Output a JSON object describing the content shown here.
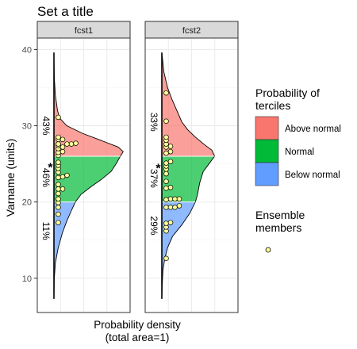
{
  "chart_data": {
    "type": "area",
    "title": "Set a title",
    "ylabel": "Varname (units)",
    "xlabel_line1": "Probability density",
    "xlabel_line2": "(total area=1)",
    "ylim": [
      5.5,
      41.5
    ],
    "yticks": [
      10,
      20,
      30,
      40
    ],
    "grid": true,
    "legend_position": "right",
    "tercile_bounds": [
      20,
      26
    ],
    "legend": {
      "title_line1": "Probability of",
      "title_line2": "terciles",
      "items": [
        {
          "label": "Above normal",
          "color": "#F8766D"
        },
        {
          "label": "Normal",
          "color": "#00BA38"
        },
        {
          "label": "Below normal",
          "color": "#619CFF"
        }
      ],
      "members_title_line1": "Ensemble",
      "members_title_line2": "members"
    },
    "panels": [
      {
        "strip": "fcst1",
        "line_range": [
          7.3,
          39.6
        ],
        "star_value": 24.7,
        "percents": {
          "above": "43%",
          "normal": "46%",
          "below": "11%"
        },
        "percent_y": [
          30.0,
          23.2,
          16.2
        ],
        "density": [
          [
            7.3,
            0.0
          ],
          [
            10,
            0.005
          ],
          [
            12,
            0.02
          ],
          [
            14,
            0.06
          ],
          [
            16,
            0.12
          ],
          [
            17.5,
            0.18
          ],
          [
            19,
            0.25
          ],
          [
            20,
            0.3
          ],
          [
            21,
            0.38
          ],
          [
            22,
            0.52
          ],
          [
            23,
            0.67
          ],
          [
            24,
            0.8
          ],
          [
            25,
            0.87
          ],
          [
            26,
            0.93
          ],
          [
            26.6,
            0.97
          ],
          [
            27.2,
            0.9
          ],
          [
            28,
            0.68
          ],
          [
            29,
            0.4
          ],
          [
            30,
            0.18
          ],
          [
            31,
            0.08
          ],
          [
            32,
            0.05
          ],
          [
            34,
            0.02
          ],
          [
            36,
            0.007
          ],
          [
            38,
            0.002
          ],
          [
            39.6,
            0.0
          ]
        ],
        "members": [
          [
            17.3,
            1
          ],
          [
            18.4,
            1
          ],
          [
            19.3,
            1
          ],
          [
            19.9,
            1
          ],
          [
            20.4,
            1
          ],
          [
            21.1,
            1
          ],
          [
            21.7,
            1
          ],
          [
            21.7,
            2
          ],
          [
            22.3,
            1
          ],
          [
            23.2,
            1
          ],
          [
            23.3,
            2
          ],
          [
            23.5,
            3
          ],
          [
            23.9,
            1
          ],
          [
            24.4,
            1
          ],
          [
            24.8,
            1
          ],
          [
            25.2,
            1
          ],
          [
            26.1,
            1
          ],
          [
            26.5,
            1
          ],
          [
            26.6,
            2
          ],
          [
            27.0,
            1
          ],
          [
            27.2,
            2
          ],
          [
            27.4,
            1
          ],
          [
            27.6,
            1
          ],
          [
            27.6,
            3
          ],
          [
            27.6,
            4
          ],
          [
            27.7,
            5
          ],
          [
            28.2,
            1
          ],
          [
            28.2,
            2
          ],
          [
            28.5,
            1
          ],
          [
            31.1,
            1
          ]
        ]
      },
      {
        "strip": "fcst2",
        "line_range": [
          7.3,
          39.6
        ],
        "star_value": 24.6,
        "percents": {
          "above": "33%",
          "normal": "37%",
          "below": "29%"
        },
        "percent_y": [
          30.5,
          23.1,
          16.9
        ],
        "density": [
          [
            7.3,
            0.0
          ],
          [
            9,
            0.005
          ],
          [
            11,
            0.015
          ],
          [
            12.5,
            0.04
          ],
          [
            14,
            0.08
          ],
          [
            15.5,
            0.15
          ],
          [
            17,
            0.28
          ],
          [
            18.5,
            0.39
          ],
          [
            20,
            0.47
          ],
          [
            21,
            0.5
          ],
          [
            22.5,
            0.53
          ],
          [
            24,
            0.58
          ],
          [
            25,
            0.66
          ],
          [
            26,
            0.74
          ],
          [
            26.8,
            0.7
          ],
          [
            27.5,
            0.6
          ],
          [
            28.5,
            0.47
          ],
          [
            29.5,
            0.36
          ],
          [
            30.5,
            0.28
          ],
          [
            32,
            0.21
          ],
          [
            33.5,
            0.14
          ],
          [
            35,
            0.08
          ],
          [
            37,
            0.03
          ],
          [
            39.6,
            0.0
          ]
        ],
        "members": [
          [
            12.6,
            1
          ],
          [
            16.2,
            1
          ],
          [
            16.7,
            1
          ],
          [
            17.2,
            1
          ],
          [
            17.3,
            2
          ],
          [
            19.3,
            1
          ],
          [
            19.3,
            2
          ],
          [
            19.3,
            3
          ],
          [
            19.5,
            4
          ],
          [
            20.3,
            1
          ],
          [
            20.4,
            2
          ],
          [
            20.4,
            3
          ],
          [
            20.4,
            4
          ],
          [
            21.8,
            1
          ],
          [
            21.9,
            2
          ],
          [
            22.7,
            1
          ],
          [
            23.7,
            1
          ],
          [
            24.3,
            1
          ],
          [
            24.7,
            1
          ],
          [
            25.1,
            1
          ],
          [
            25.3,
            2
          ],
          [
            26.4,
            1
          ],
          [
            26.6,
            2
          ],
          [
            27.2,
            1
          ],
          [
            27.3,
            2
          ],
          [
            27.6,
            1
          ],
          [
            28.1,
            1
          ],
          [
            28.5,
            1
          ],
          [
            30.6,
            1
          ],
          [
            34.3,
            1
          ]
        ]
      }
    ]
  }
}
